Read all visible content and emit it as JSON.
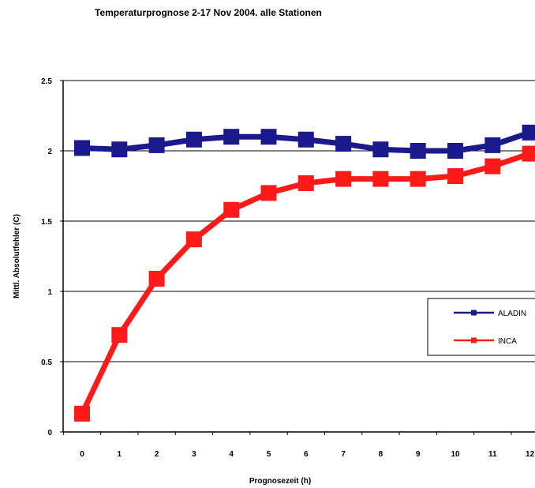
{
  "chart_data": {
    "type": "line",
    "title": "Temperaturprognose 2-17 Nov 2004.  alle Stationen",
    "xlabel": "Prognosezeit (h)",
    "ylabel": "Mittl. Absolutfehler (C)",
    "categories": [
      "0",
      "1",
      "2",
      "3",
      "4",
      "5",
      "6",
      "7",
      "8",
      "9",
      "10",
      "11",
      "12"
    ],
    "ylim": [
      0,
      2.5
    ],
    "yticks": [
      "0",
      "0.5",
      "1",
      "1.5",
      "2",
      "2.5"
    ],
    "grid": true,
    "legend_position": "right",
    "series": [
      {
        "name": "ALADIN",
        "color": "#1a1a8c",
        "values": [
          2.02,
          2.01,
          2.04,
          2.08,
          2.1,
          2.1,
          2.08,
          2.05,
          2.01,
          2.0,
          2.0,
          2.04,
          2.13
        ]
      },
      {
        "name": "INCA",
        "color": "#ff1a1a",
        "values": [
          0.13,
          0.69,
          1.09,
          1.37,
          1.58,
          1.7,
          1.77,
          1.8,
          1.8,
          1.8,
          1.82,
          1.89,
          1.98
        ]
      }
    ]
  }
}
